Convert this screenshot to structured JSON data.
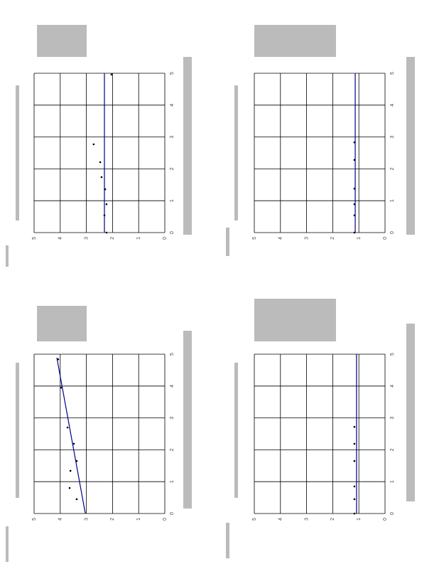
{
  "chart_data": [
    {
      "type": "scatter",
      "color": "#00008b",
      "grid": true,
      "x": [
        0,
        0.54,
        0.89,
        1.36,
        1.74,
        2.21,
        2.77,
        4.96
      ],
      "values": [
        2.23,
        2.31,
        2.23,
        2.28,
        2.42,
        2.47,
        2.72,
        2.04
      ],
      "fit_x": [
        0,
        5
      ],
      "fit_y": [
        2.31,
        2.31
      ],
      "xlim": [
        0,
        5
      ],
      "ylim": [
        0,
        5
      ],
      "xticks": [
        0,
        1,
        2,
        3,
        4,
        5
      ],
      "yticks": [
        0,
        1,
        2,
        3,
        4,
        5
      ]
    },
    {
      "type": "scatter",
      "color": "#00008b",
      "grid": true,
      "x": [
        0,
        0.54,
        0.89,
        1.38,
        2.28,
        2.83
      ],
      "values": [
        1.17,
        1.17,
        1.17,
        1.17,
        1.17,
        1.17
      ],
      "fit_x": [
        0,
        5
      ],
      "fit_y": [
        1.14,
        1.14
      ],
      "xlim": [
        0,
        5
      ],
      "ylim": [
        0,
        5
      ],
      "xticks": [
        0,
        1,
        2,
        3,
        4,
        5
      ],
      "yticks": [
        0,
        1,
        2,
        3,
        4,
        5
      ]
    },
    {
      "type": "scatter",
      "color": "#00008b",
      "grid": true,
      "x": [
        0.45,
        0.8,
        1.65,
        1.34,
        2.19,
        2.7,
        3.95,
        4.84
      ],
      "values": [
        3.37,
        3.64,
        3.37,
        3.61,
        3.48,
        3.72,
        3.97,
        4.08
      ],
      "fit_x": [
        0,
        4.89
      ],
      "fit_y": [
        3.04,
        4.13
      ],
      "xlim": [
        0,
        5
      ],
      "ylim": [
        0,
        5
      ],
      "xticks": [
        0,
        1,
        2,
        3,
        4,
        5
      ],
      "yticks": [
        0,
        1,
        2,
        3,
        4,
        5
      ]
    },
    {
      "type": "scatter",
      "color": "#00008b",
      "grid": true,
      "x": [
        0,
        0.45,
        0.85,
        1.65,
        2.19,
        2.72
      ],
      "values": [
        1.17,
        1.17,
        1.17,
        1.17,
        1.17,
        1.17
      ],
      "fit_x": [
        0,
        5
      ],
      "fit_y": [
        1.09,
        1.09
      ],
      "xlim": [
        0,
        5
      ],
      "ylim": [
        0,
        5
      ],
      "xticks": [
        0,
        1,
        2,
        3,
        4,
        5
      ],
      "yticks": [
        0,
        1,
        2,
        3,
        4,
        5
      ]
    }
  ]
}
